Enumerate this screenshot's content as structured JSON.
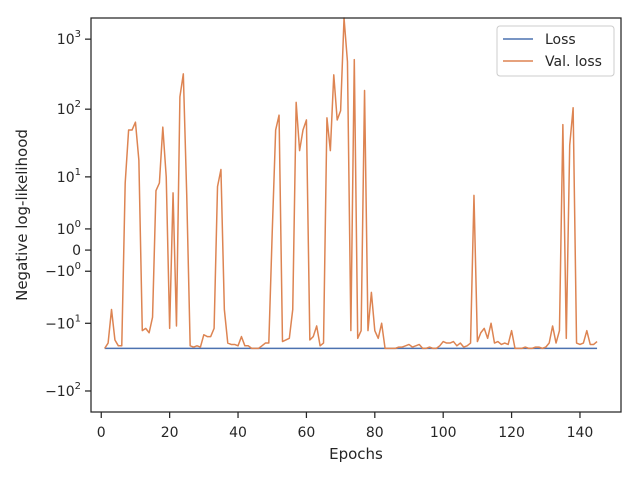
{
  "chart_data": {
    "type": "line",
    "title": "",
    "xlabel": "Epochs",
    "ylabel": "Negative log-likelihood",
    "xlim": [
      -3,
      152
    ],
    "xticks": [
      0,
      20,
      40,
      60,
      80,
      100,
      120,
      140
    ],
    "ylim": [
      -200,
      2000
    ],
    "yscale": "symlog",
    "yscale_linthresh": 1,
    "yticks": [
      {
        "value": 1000,
        "base": "10",
        "exp": "3"
      },
      {
        "value": 100,
        "base": "10",
        "exp": "2"
      },
      {
        "value": 10,
        "base": "10",
        "exp": "1"
      },
      {
        "value": 1,
        "base": "10",
        "exp": "0"
      },
      {
        "value": 0,
        "base": "0",
        "exp": ""
      },
      {
        "value": -1,
        "base": "−10",
        "exp": "0"
      },
      {
        "value": -10,
        "base": "−10",
        "exp": "1"
      },
      {
        "value": -100,
        "base": "−10",
        "exp": "2"
      }
    ],
    "grid": false,
    "legend_position": "top-right",
    "series": [
      {
        "name": "Loss",
        "color": "#4c72b0",
        "x": [
          1,
          145
        ],
        "y": [
          -24,
          -24
        ]
      },
      {
        "name": "Val. loss",
        "color": "#dd8452",
        "x": [
          1,
          2,
          3,
          4,
          5,
          6,
          7,
          8,
          9,
          10,
          11,
          12,
          13,
          14,
          15,
          16,
          17,
          18,
          19,
          20,
          21,
          22,
          23,
          24,
          25,
          26,
          27,
          28,
          29,
          30,
          31,
          32,
          33,
          34,
          35,
          36,
          37,
          38,
          39,
          40,
          41,
          42,
          43,
          44,
          45,
          46,
          47,
          48,
          49,
          50,
          51,
          52,
          53,
          54,
          55,
          56,
          57,
          58,
          59,
          60,
          61,
          62,
          63,
          64,
          65,
          66,
          67,
          68,
          69,
          70,
          71,
          72,
          73,
          74,
          75,
          76,
          77,
          78,
          79,
          80,
          81,
          82,
          83,
          84,
          85,
          86,
          87,
          88,
          89,
          90,
          91,
          92,
          93,
          94,
          95,
          96,
          97,
          98,
          99,
          100,
          101,
          102,
          103,
          104,
          105,
          106,
          107,
          108,
          109,
          110,
          111,
          112,
          113,
          114,
          115,
          116,
          117,
          118,
          119,
          120,
          121,
          122,
          123,
          124,
          125,
          126,
          127,
          128,
          129,
          130,
          131,
          132,
          133,
          134,
          135,
          136,
          137,
          138,
          139,
          140,
          141,
          142,
          143,
          144,
          145
        ],
        "y": [
          -24,
          -20,
          -6,
          -18,
          -22,
          -22,
          8,
          50,
          50,
          65,
          18,
          -13,
          -12,
          -14,
          -8,
          6,
          8,
          55,
          10,
          -12,
          5.5,
          -11,
          150,
          320,
          5,
          -22,
          -23,
          -22,
          -23,
          -15,
          -16,
          -16,
          -12,
          7,
          13,
          -6,
          -20,
          -21,
          -21,
          -22,
          -16,
          -22,
          -22,
          -24,
          -24,
          -24,
          -22,
          -20,
          -20,
          0.8,
          50,
          82,
          -19,
          -18,
          -17,
          -6,
          125,
          25,
          50,
          70,
          -18,
          -16,
          -11,
          -22,
          -20,
          75,
          25,
          310,
          70,
          95,
          2000,
          480,
          -13,
          510,
          -17,
          -13,
          185,
          -13,
          -3,
          -13,
          -17,
          -10,
          -24,
          -24,
          -24,
          -24,
          -23,
          -23,
          -22,
          -21,
          -23,
          -22,
          -21,
          -24,
          -24,
          -23,
          -24,
          -24,
          -22,
          -19,
          -20,
          -20,
          -19,
          -22,
          -20,
          -23,
          -22,
          -20,
          5,
          -19,
          -14,
          -12,
          -17,
          -10,
          -20,
          -19,
          -21,
          -20,
          -21,
          -13,
          -24,
          -24,
          -24,
          -23,
          -24,
          -24,
          -23,
          -23,
          -24,
          -23,
          -20,
          -11,
          -20,
          -13,
          60,
          -17,
          30,
          105,
          -20,
          -21,
          -20,
          -13,
          -21,
          -21,
          -19
        ]
      }
    ]
  }
}
